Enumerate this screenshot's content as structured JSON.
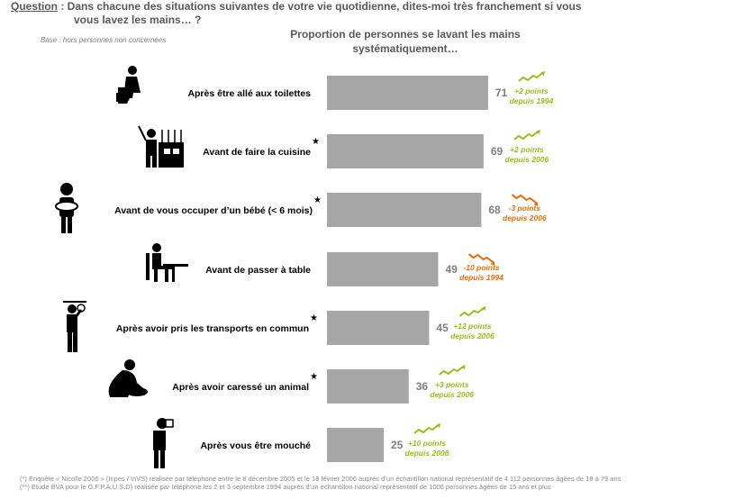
{
  "question": {
    "label": "Question",
    "text": " : Dans chacune des situations suivantes de votre vie quotidienne, dites-moi très franchement si vous",
    "text2": "vous lavez les mains… ?"
  },
  "base": "Base : hors personnes non concernées",
  "chart_data": {
    "type": "bar",
    "orientation": "horizontal",
    "title": "Proportion de personnes se lavant les mains systématiquement…",
    "categories": [
      "Après être allé aux toilettes",
      "Avant de faire la cuisine",
      "Avant de vous occuper d’un bébé (< 6 mois)",
      "Avant de passer à table",
      "Après avoir pris les transports en commun",
      "Après avoir caressé un animal",
      "Après vous être mouché"
    ],
    "values": [
      71,
      69,
      68,
      49,
      45,
      36,
      25
    ],
    "starred": [
      false,
      true,
      true,
      false,
      true,
      true,
      false
    ],
    "icons": [
      "toilet-icon",
      "cooking-icon",
      "baby-care-icon",
      "dining-table-icon",
      "public-transport-icon",
      "petting-animal-icon",
      "nose-blowing-icon"
    ],
    "trends": [
      {
        "line1": "+2 points",
        "line2": "depuis 1994",
        "direction": "up"
      },
      {
        "line1": "+2 points",
        "line2": "depuis 2006",
        "direction": "up"
      },
      {
        "line1": "-3 points",
        "line2": "depuis 2006",
        "direction": "down"
      },
      {
        "line1": "-10 points",
        "line2": "depuis 1994",
        "direction": "down"
      },
      {
        "line1": "+12 points",
        "line2": "depuis 2006",
        "direction": "up"
      },
      {
        "line1": "+3 points",
        "line2": "depuis 2006",
        "direction": "up"
      },
      {
        "line1": "+10 points",
        "line2": "depuis 2006",
        "direction": "up"
      }
    ],
    "colors": {
      "bar": "#a6a6a6",
      "up": "#9bbb1f",
      "down": "#e36c0a",
      "value": "#7f7f7f",
      "label": "#000000"
    }
  },
  "footnotes": [
    "(*) Enquête « Nicolle 2006 » (Inpes / InVS) réalisée par téléphone entre le 8 décembre 2005 et le 18 février 2006 auprès d’un échantillon national représentatif de 4 112 personnes âgées de 18 à 79 ans",
    "(**) Etude BVA pour le G.F.P.A.U.S.D) réalisée par téléphone les 2 et 3 septembre 1994 auprès d’un échantillon national représentatif de 1006 personnes âgées de 15 ans et plus"
  ]
}
